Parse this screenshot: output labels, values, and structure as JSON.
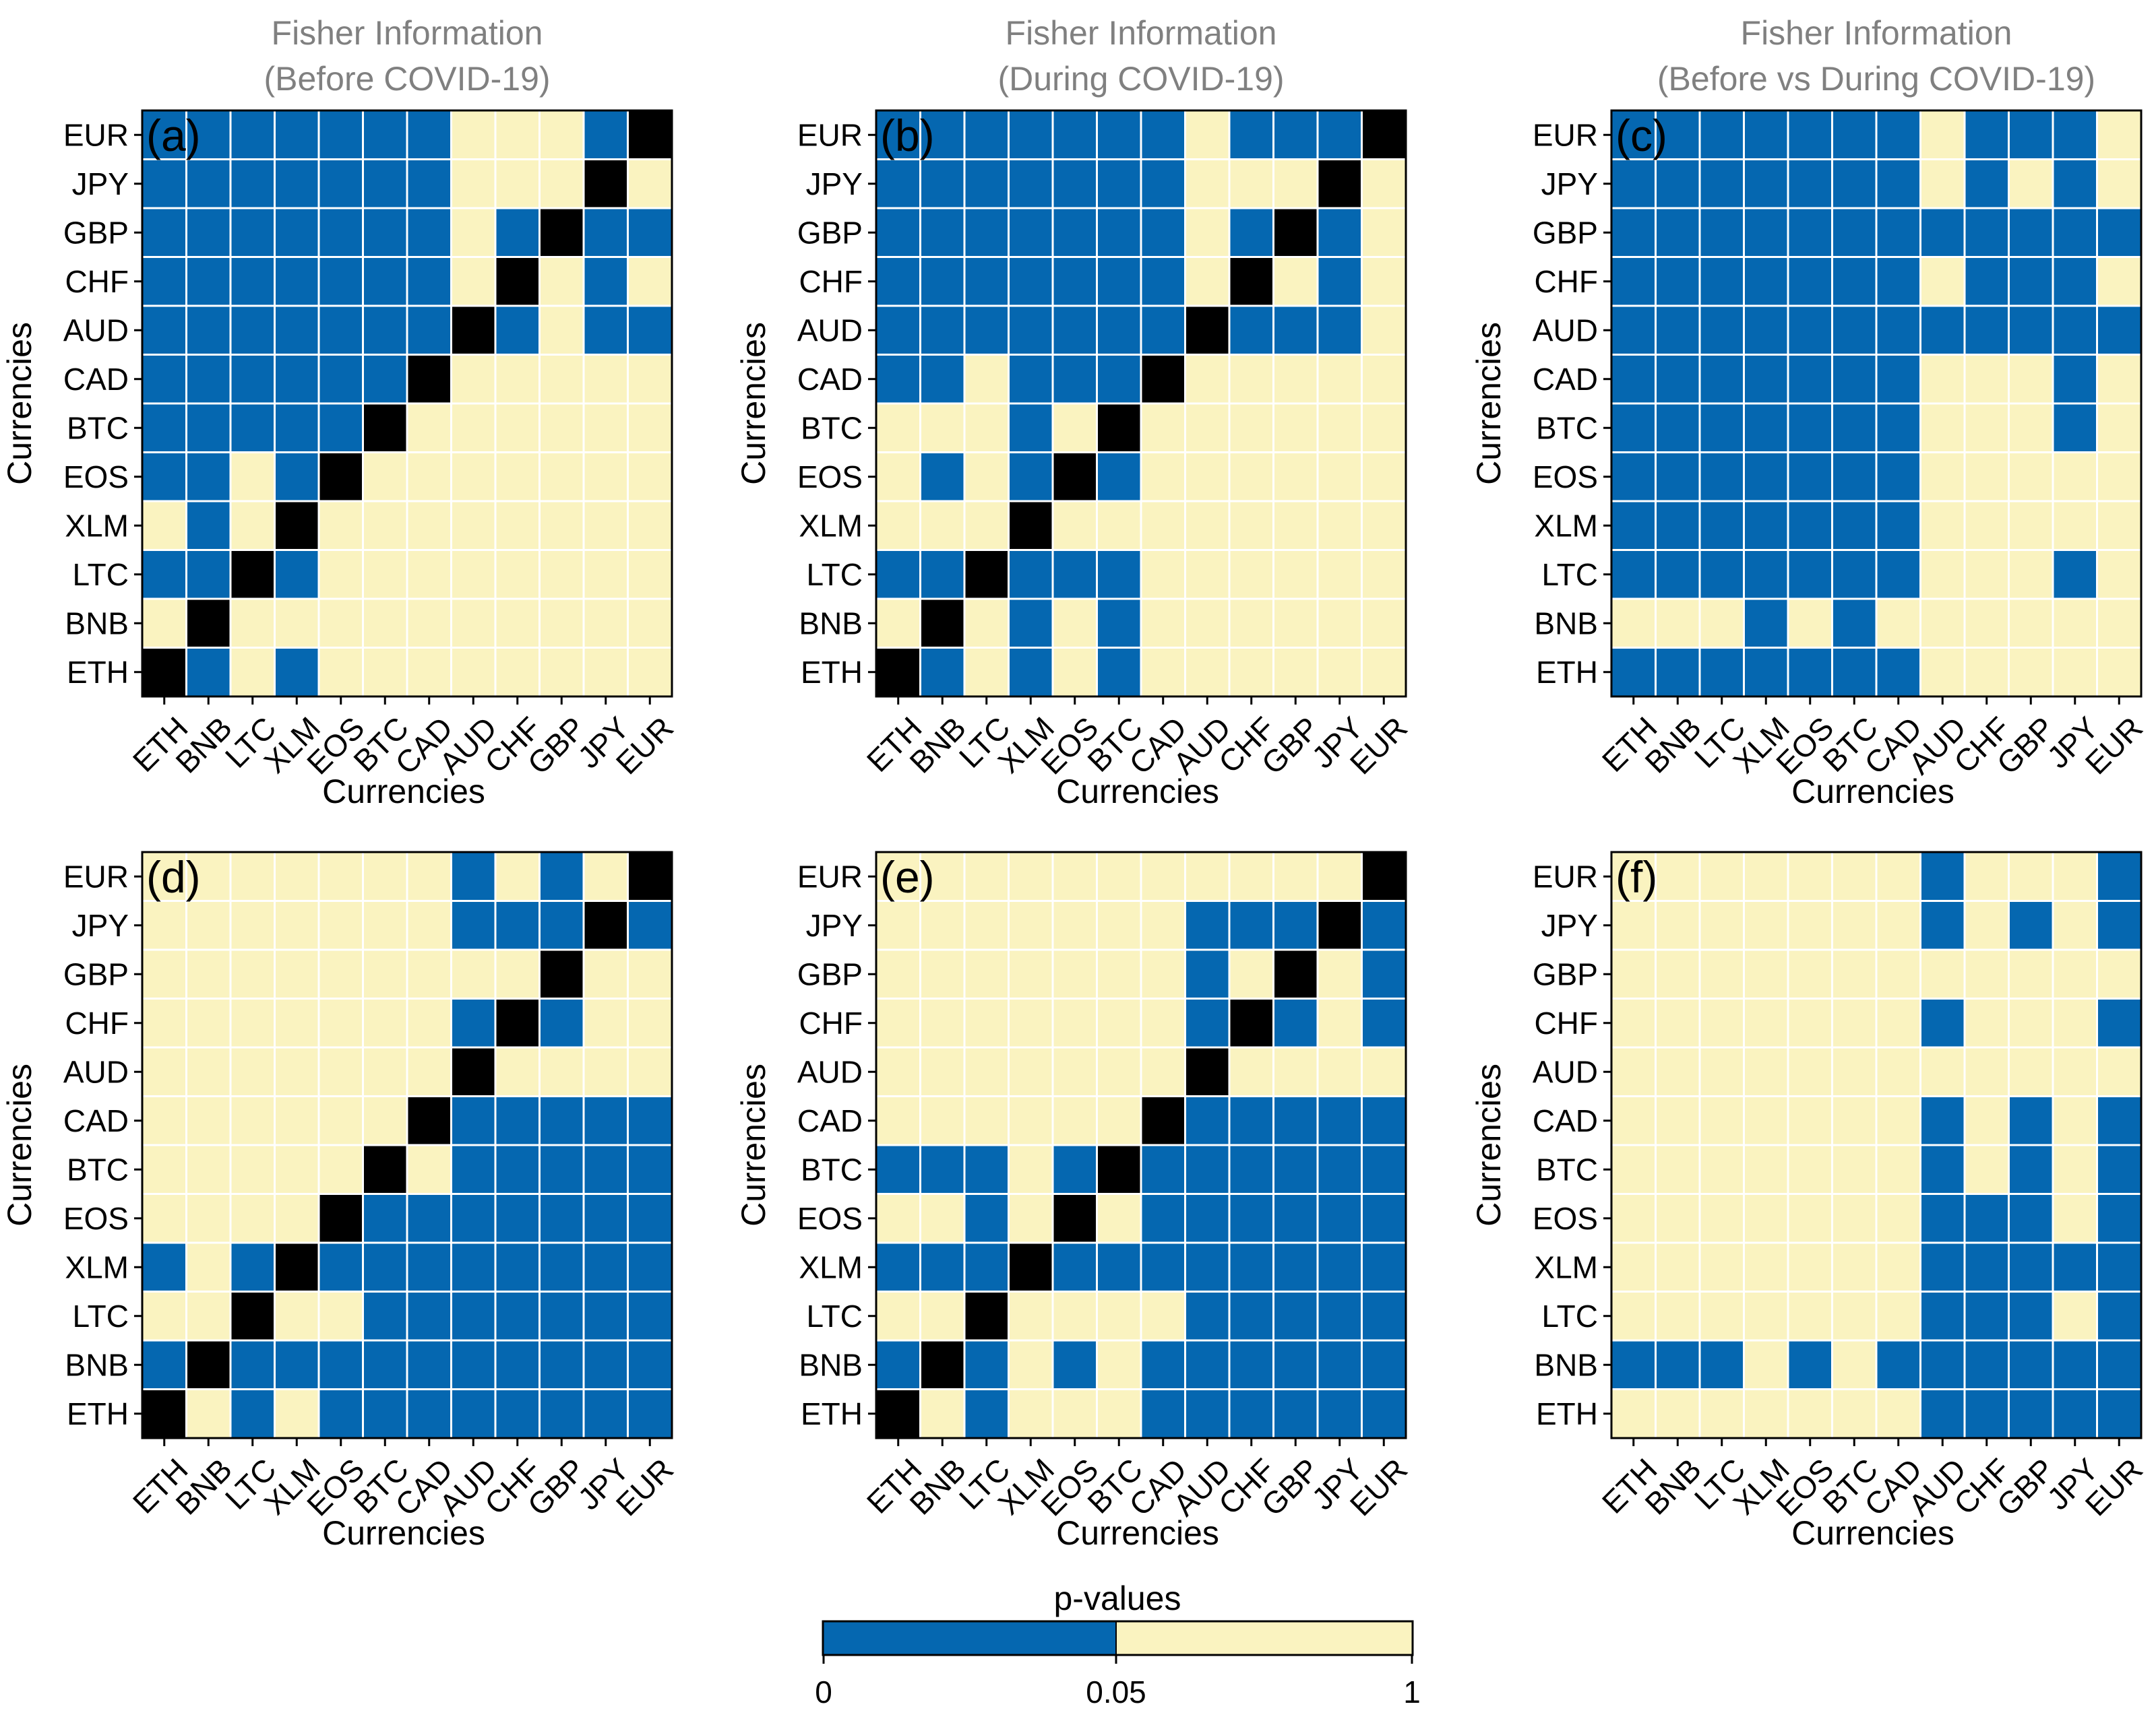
{
  "colors": {
    "sig": "#0567B0",
    "nonsig": "#FAF3C0",
    "diag": "#000000",
    "grid": "#ffffff",
    "title": "#808080"
  },
  "chart_data": [
    {
      "type": "heatmap",
      "panel": "(a)",
      "title": [
        "Fisher Information",
        "(Before COVID-19)"
      ],
      "xlabel": "Currencies",
      "ylabel": "Currencies",
      "categories": [
        "ETH",
        "BNB",
        "LTC",
        "XLM",
        "EOS",
        "BTC",
        "CAD",
        "AUD",
        "CHF",
        "GBP",
        "JPY",
        "EUR"
      ],
      "value_legend": "B = p < 0.05, Y = p >= 0.05, K = diagonal; rows listed top (EUR) to bottom (ETH)",
      "rows": [
        "BBBBBBBYYYBK",
        "BBBBBBBYYYKY",
        "BBBBBBBYBKBB",
        "BBBBBBBYKYBY",
        "BBBBBBBKBYBB",
        "BBBBBBKYYYYY",
        "BBBBBKYYYYYY",
        "BBYBKYYYYYYY",
        "YBYKYYYYYYYY",
        "BBKBYYYYYYYY",
        "YKYYYYYYYYYY",
        "KBYBYYYYYYYY"
      ]
    },
    {
      "type": "heatmap",
      "panel": "(b)",
      "title": [
        "Fisher Information",
        "(During COVID-19)"
      ],
      "xlabel": "Currencies",
      "ylabel": "Currencies",
      "categories": [
        "ETH",
        "BNB",
        "LTC",
        "XLM",
        "EOS",
        "BTC",
        "CAD",
        "AUD",
        "CHF",
        "GBP",
        "JPY",
        "EUR"
      ],
      "value_legend": "B = p < 0.05, Y = p >= 0.05, K = diagonal; rows listed top (EUR) to bottom (ETH)",
      "rows": [
        "BBBBBBBYBBBK",
        "BBBBBBBYYYKY",
        "BBBBBBBYBKBY",
        "BBBBBBBYKYBY",
        "BBBBBBBKBBBY",
        "BBYBBBKYYYYY",
        "YYYBYKYYYYYY",
        "YBYBKBYYYYYY",
        "YYYKYYYYYYYY",
        "BBKBBBYYYYYY",
        "YKYBYBYYYYYY",
        "KBYBYBYYYYYY"
      ]
    },
    {
      "type": "heatmap",
      "panel": "(c)",
      "title": [
        "Fisher Information",
        "(Before vs During COVID-19)"
      ],
      "xlabel": "Currencies",
      "ylabel": "Currencies",
      "categories": [
        "ETH",
        "BNB",
        "LTC",
        "XLM",
        "EOS",
        "BTC",
        "CAD",
        "AUD",
        "CHF",
        "GBP",
        "JPY",
        "EUR"
      ],
      "value_legend": "B = p < 0.05, Y = p >= 0.05, K = diagonal; rows listed top (EUR) to bottom (ETH)",
      "rows": [
        "BBBBBBBYBBBY",
        "BBBBBBBYBYBY",
        "BBBBBBBBBBBB",
        "BBBBBBBYBBBY",
        "BBBBBBBBBBBB",
        "BBBBBBBYYYBY",
        "BBBBBBBYYYBY",
        "BBBBBBBYYYYY",
        "BBBBBBBYYYYY",
        "BBBBBBBYYYBY",
        "YYYBYBYYYYYY",
        "BBBBBBBYYYYY"
      ]
    },
    {
      "type": "heatmap",
      "panel": "(d)",
      "title": [
        "",
        ""
      ],
      "xlabel": "Currencies",
      "ylabel": "Currencies",
      "categories": [
        "ETH",
        "BNB",
        "LTC",
        "XLM",
        "EOS",
        "BTC",
        "CAD",
        "AUD",
        "CHF",
        "GBP",
        "JPY",
        "EUR"
      ],
      "value_legend": "B = p < 0.05, Y = p >= 0.05, K = diagonal; rows listed top (EUR) to bottom (ETH)",
      "rows": [
        "YYYYYYYBYBYK",
        "YYYYYYYBBBKB",
        "YYYYYYYYYKYY",
        "YYYYYYYBKBYY",
        "YYYYYYYKYYYY",
        "YYYYYYKBBBBB",
        "YYYYYKYBBBBB",
        "YYYYKBBBBBBB",
        "BYBKBBBBBBBB",
        "YYKYYBBBBBBB",
        "BKBBBBBBBBBB",
        "KYBYBBBBBBBB"
      ]
    },
    {
      "type": "heatmap",
      "panel": "(e)",
      "title": [
        "",
        ""
      ],
      "xlabel": "Currencies",
      "ylabel": "Currencies",
      "categories": [
        "ETH",
        "BNB",
        "LTC",
        "XLM",
        "EOS",
        "BTC",
        "CAD",
        "AUD",
        "CHF",
        "GBP",
        "JPY",
        "EUR"
      ],
      "value_legend": "B = p < 0.05, Y = p >= 0.05, K = diagonal; rows listed top (EUR) to bottom (ETH)",
      "rows": [
        "YYYYYYYYYYYK",
        "YYYYYYYBBBKB",
        "YYYYYYYBYKYB",
        "YYYYYYYBKBYB",
        "YYYYYYYKYYYY",
        "YYYYYYKBBBBB",
        "BBBYBKBBBBBB",
        "YYBYKYBBBBBB",
        "BBBKBBBBBBBB",
        "YYKYYYYBBBBB",
        "BKBYBYBBBBBB",
        "KYBYYYBBBBBB"
      ]
    },
    {
      "type": "heatmap",
      "panel": "(f)",
      "title": [
        "",
        ""
      ],
      "xlabel": "Currencies",
      "ylabel": "Currencies",
      "categories": [
        "ETH",
        "BNB",
        "LTC",
        "XLM",
        "EOS",
        "BTC",
        "CAD",
        "AUD",
        "CHF",
        "GBP",
        "JPY",
        "EUR"
      ],
      "value_legend": "B = p < 0.05, Y = p >= 0.05, K = diagonal; rows listed top (EUR) to bottom (ETH)",
      "rows": [
        "YYYYYYYBYYYB",
        "YYYYYYYBYBYB",
        "YYYYYYYYYYYY",
        "YYYYYYYBYYYB",
        "YYYYYYYYYYYY",
        "YYYYYYYBYBYB",
        "YYYYYYYBYBYB",
        "YYYYYYYBBBYB",
        "YYYYYYYBBBBB",
        "YYYYYYYBBBYB",
        "BBBYBYBBBBBB",
        "YYYYYYYBBBBB"
      ]
    }
  ],
  "legend": {
    "title": "p-values",
    "ticks": [
      "0",
      "0.05",
      "1"
    ],
    "cut_value": 0.05
  }
}
